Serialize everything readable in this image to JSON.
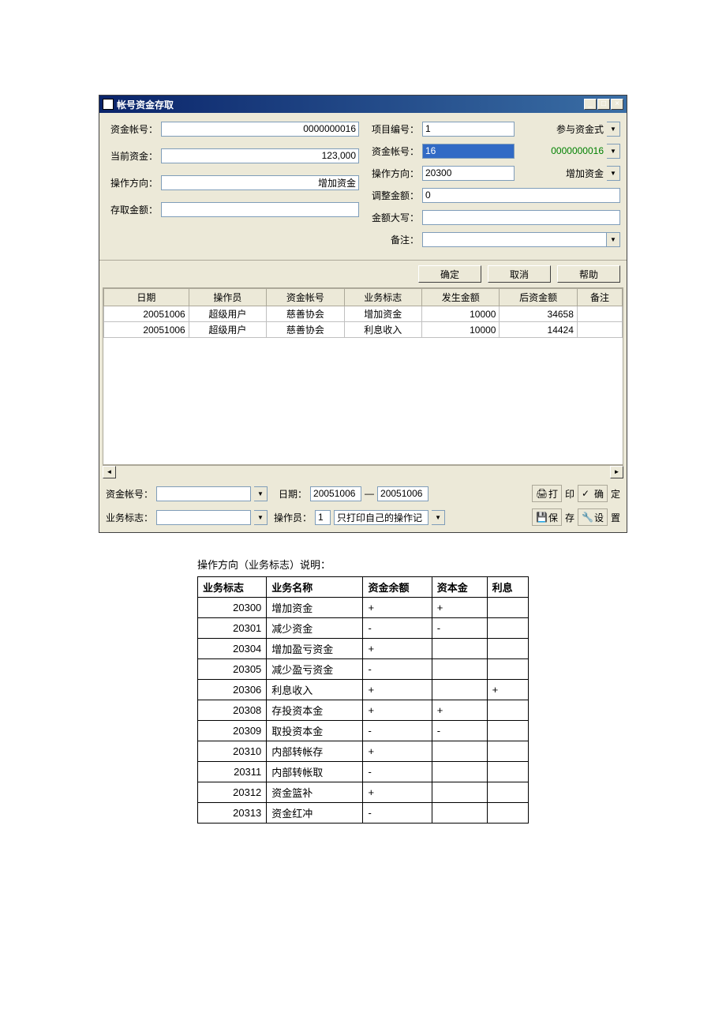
{
  "window": {
    "title": "帐号资金存取"
  },
  "form": {
    "left": {
      "account_label": "资金帐号：",
      "account_value": "0000000016",
      "balance_label": "当前资金：",
      "balance_value": "123,000",
      "direction_label": "操作方向：",
      "direction_value": "增加资金",
      "amount_label": "存取金额："
    },
    "right": {
      "project_label": "项目编号：",
      "project_value": "1",
      "project_extra": "参与资金式",
      "fund_account_label": "资金帐号：",
      "fund_account_value": "16",
      "fund_account_extra": "0000000016",
      "direction_label": "操作方向：",
      "direction_value": "20300",
      "direction_extra": "增加资金",
      "adjust_label": "调整金额：",
      "adjust_value": "0",
      "amount_cn_label": "金额大写：",
      "remark_label": "备注："
    }
  },
  "buttons": {
    "ok": "确定",
    "cancel": "取消",
    "help": "帮助"
  },
  "grid": {
    "headers": [
      "日期",
      "操作员",
      "资金帐号",
      "业务标志",
      "发生金额",
      "后资金额",
      "备注"
    ],
    "rows": [
      [
        "20051006",
        "超级用户",
        "慈善协会",
        "增加资金",
        "10000",
        "34658",
        ""
      ],
      [
        "20051006",
        "超级用户",
        "慈善协会",
        "利息收入",
        "10000",
        "14424",
        ""
      ]
    ]
  },
  "filter": {
    "account_label": "资金帐号：",
    "date_label": "日期：",
    "date_from": "20051006",
    "date_sep": "—",
    "date_to": "20051006",
    "biz_label": "业务标志：",
    "operator_label": "操作员：",
    "operator_value": "1",
    "operator_option": "只打印自己的操作记",
    "print_btn": "打",
    "print_suffix": "印",
    "confirm_btn": "确",
    "confirm_suffix": "定",
    "save_btn": "保",
    "save_suffix": "存",
    "setting_btn": "设",
    "setting_suffix": "置"
  },
  "caption": "操作方向（业务标志）说明：",
  "explain": {
    "headers": [
      "业务标志",
      "业务名称",
      "资金余额",
      "资本金",
      "利息"
    ],
    "rows": [
      [
        "20300",
        "增加资金",
        "+",
        "+",
        ""
      ],
      [
        "20301",
        "减少资金",
        "-",
        "-",
        ""
      ],
      [
        "20304",
        "增加盈亏资金",
        "+",
        "",
        ""
      ],
      [
        "20305",
        "减少盈亏资金",
        "-",
        "",
        ""
      ],
      [
        "20306",
        "利息收入",
        "+",
        "",
        "+"
      ],
      [
        "20308",
        "存投资本金",
        "+",
        "+",
        ""
      ],
      [
        "20309",
        "取投资本金",
        "-",
        "-",
        ""
      ],
      [
        "20310",
        "内部转帐存",
        "+",
        "",
        ""
      ],
      [
        "20311",
        "内部转帐取",
        "-",
        "",
        ""
      ],
      [
        "20312",
        "资金篮补",
        "+",
        "",
        ""
      ],
      [
        "20313",
        "资金红冲",
        "-",
        "",
        ""
      ]
    ]
  }
}
